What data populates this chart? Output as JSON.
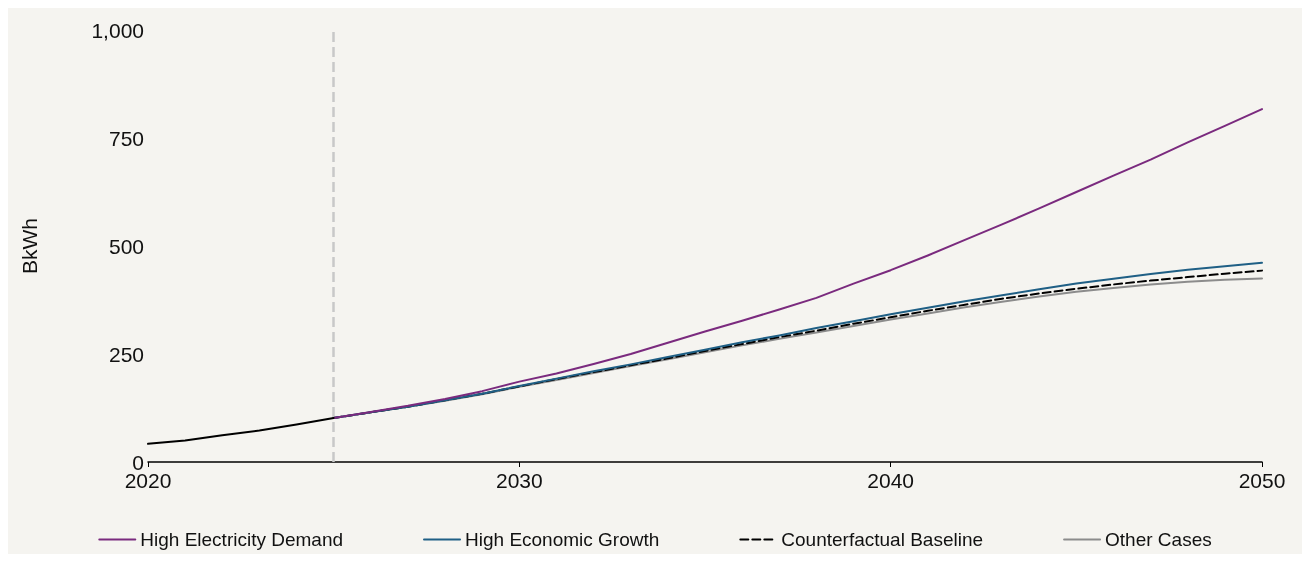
{
  "chart_data": {
    "type": "line",
    "ylabel": "BkWh",
    "xlim": [
      2020,
      2050
    ],
    "ylim": [
      0,
      1000
    ],
    "xticks": [
      2020,
      2030,
      2040,
      2050
    ],
    "yticks": [
      0,
      250,
      500,
      750,
      {
        "value": 1000,
        "label": "1,000"
      }
    ],
    "grid": false,
    "legend": "bottom",
    "marker": "none",
    "ref_lines": [
      {
        "axis": "x",
        "value": 2025,
        "color": "#c8c8c8",
        "line_style": "dashed"
      }
    ],
    "series": [
      {
        "color": "#000000",
        "x": [
          2020,
          2021,
          2022,
          2023,
          2024,
          2025
        ],
        "values": [
          42,
          50,
          62,
          73,
          87,
          102
        ]
      },
      {
        "name": "High Electricity Demand",
        "color": "#7a2a7e",
        "x": [
          2025,
          2026,
          2027,
          2028,
          2029,
          2030,
          2031,
          2032,
          2033,
          2034,
          2035,
          2036,
          2037,
          2038,
          2039,
          2040,
          2041,
          2042,
          2043,
          2044,
          2045,
          2046,
          2047,
          2048,
          2049,
          2050
        ],
        "values": [
          102,
          116,
          130,
          146,
          164,
          186,
          205,
          227,
          250,
          276,
          302,
          327,
          353,
          380,
          413,
          444,
          478,
          514,
          550,
          587,
          625,
          663,
          700,
          740,
          778,
          817
        ]
      },
      {
        "name": "High Economic Growth",
        "color": "#1f5f85",
        "x": [
          2025,
          2026,
          2027,
          2028,
          2029,
          2030,
          2031,
          2032,
          2033,
          2034,
          2035,
          2036,
          2037,
          2038,
          2039,
          2040,
          2041,
          2042,
          2043,
          2044,
          2045,
          2046,
          2047,
          2048,
          2049,
          2050
        ],
        "values": [
          102,
          115,
          128,
          143,
          158,
          176,
          193,
          210,
          226,
          243,
          260,
          277,
          293,
          310,
          326,
          342,
          357,
          372,
          386,
          400,
          413,
          424,
          435,
          445,
          453,
          461
        ]
      },
      {
        "name": "Counterfactual Baseline",
        "color": "#000000",
        "line_style": "dashed",
        "x": [
          2025,
          2026,
          2027,
          2028,
          2029,
          2030,
          2031,
          2032,
          2033,
          2034,
          2035,
          2036,
          2037,
          2038,
          2039,
          2040,
          2041,
          2042,
          2043,
          2044,
          2045,
          2046,
          2047,
          2048,
          2049,
          2050
        ],
        "values": [
          102,
          115,
          128,
          143,
          158,
          175,
          192,
          208,
          224,
          240,
          257,
          273,
          289,
          304,
          320,
          335,
          350,
          364,
          378,
          390,
          401,
          411,
          420,
          428,
          436,
          443
        ]
      },
      {
        "name": "Other Cases",
        "color": "#8c8c8c",
        "x": [
          2025,
          2026,
          2027,
          2028,
          2029,
          2030,
          2031,
          2032,
          2033,
          2034,
          2035,
          2036,
          2037,
          2038,
          2039,
          2040,
          2041,
          2042,
          2043,
          2044,
          2045,
          2046,
          2047,
          2048,
          2049,
          2050
        ],
        "values": [
          102,
          115,
          128,
          142,
          157,
          174,
          190,
          206,
          222,
          238,
          254,
          270,
          285,
          300,
          315,
          330,
          344,
          358,
          371,
          383,
          394,
          403,
          411,
          417,
          422,
          425
        ]
      }
    ]
  }
}
